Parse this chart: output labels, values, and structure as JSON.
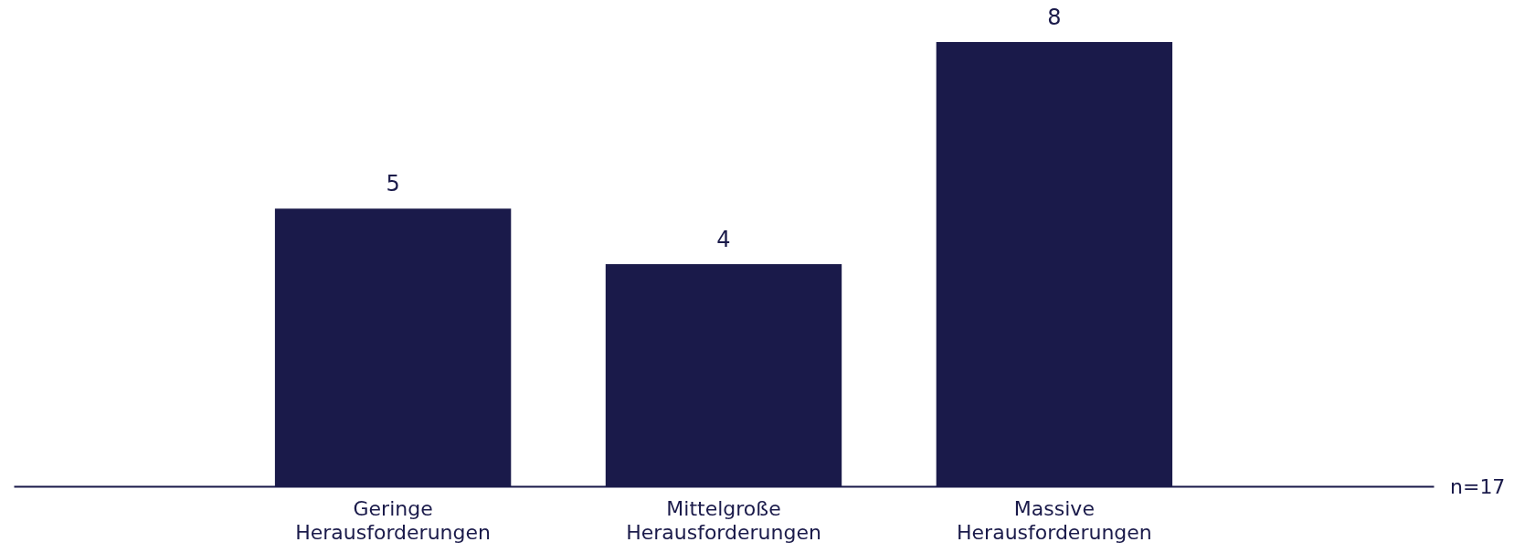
{
  "chart_data": {
    "type": "bar",
    "categories": [
      "Geringe Herausforderungen",
      "Mittelgroße Herausforderungen",
      "Massive Herausforderungen"
    ],
    "values": [
      5,
      4,
      8
    ],
    "color": "#1a1a4a",
    "data_labels": true,
    "annotations": [
      "n=17"
    ]
  }
}
